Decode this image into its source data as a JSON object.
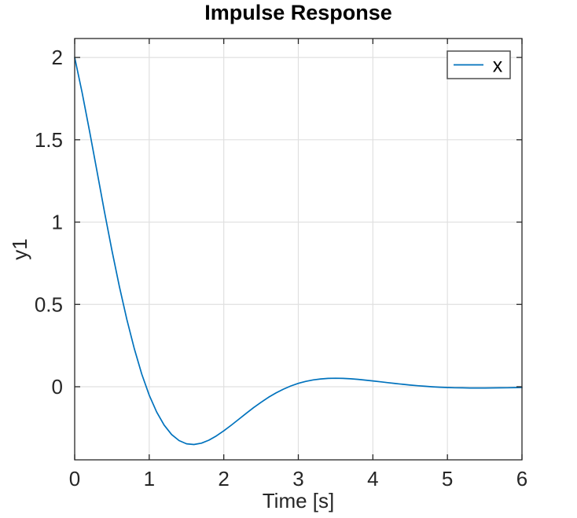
{
  "chart_data": {
    "type": "line",
    "title": "Impulse Response",
    "xlabel": "Time [s]",
    "ylabel": "y1",
    "xlim": [
      0,
      6
    ],
    "ylim": [
      -0.444,
      2.115
    ],
    "xticks": [
      0,
      1,
      2,
      3,
      4,
      5,
      6
    ],
    "yticks": [
      0,
      0.5,
      1,
      1.5,
      2
    ],
    "grid": true,
    "legend": {
      "position": "top-right",
      "entries": [
        {
          "label": "x",
          "color": "#0072BD"
        }
      ]
    },
    "series": [
      {
        "name": "x",
        "color": "#0072BD",
        "x": [
          0,
          0.1,
          0.2,
          0.3,
          0.4,
          0.5,
          0.6,
          0.7,
          0.8,
          0.9,
          1.0,
          1.1,
          1.2,
          1.3,
          1.4,
          1.5,
          1.6,
          1.7,
          1.8,
          1.9,
          2.0,
          2.1,
          2.2,
          2.3,
          2.4,
          2.5,
          2.6,
          2.7,
          2.8,
          2.9,
          3.0,
          3.1,
          3.2,
          3.3,
          3.4,
          3.5,
          3.6,
          3.7,
          3.8,
          3.9,
          4.0,
          4.1,
          4.2,
          4.3,
          4.4,
          4.5,
          4.6,
          4.7,
          4.8,
          4.9,
          5.0,
          5.1,
          5.2,
          5.3,
          5.4,
          5.5,
          5.6,
          5.7,
          5.8,
          5.9,
          6.0
        ],
        "y": [
          2.0,
          1.7854,
          1.5501,
          1.3059,
          1.0624,
          0.8275,
          0.6077,
          0.4075,
          0.23,
          0.077,
          -0.0509,
          -0.1539,
          -0.233,
          -0.2901,
          -0.3271,
          -0.3464,
          -0.351,
          -0.3428,
          -0.3247,
          -0.2991,
          -0.268,
          -0.2339,
          -0.1979,
          -0.162,
          -0.1271,
          -0.0943,
          -0.0642,
          -0.0377,
          -0.0146,
          0.0048,
          0.0205,
          0.0327,
          0.0416,
          0.0475,
          0.0508,
          0.0517,
          0.0507,
          0.0483,
          0.0447,
          0.0401,
          0.0352,
          0.03,
          0.0247,
          0.0195,
          0.0147,
          0.0101,
          0.0062,
          0.0027,
          -0.0003,
          -0.0027,
          -0.0046,
          -0.006,
          -0.0069,
          -0.0074,
          -0.0076,
          -0.0075,
          -0.0072,
          -0.0066,
          -0.006,
          -0.0053,
          -0.0045
        ]
      }
    ]
  },
  "colors": {
    "background": "#ffffff",
    "line": "#0072BD",
    "grid": "#e0e0e0",
    "axis": "#262626",
    "text": "#262626",
    "legend_border": "#4d4d4d"
  }
}
